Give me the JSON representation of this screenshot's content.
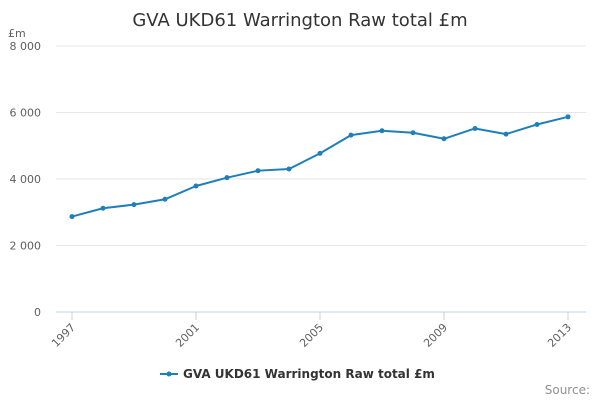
{
  "chart_data": {
    "type": "line",
    "title": "GVA UKD61 Warrington Raw total £m",
    "y_unit": "£m",
    "ylim": [
      0,
      8000
    ],
    "y_ticks": [
      0,
      2000,
      4000,
      6000,
      8000
    ],
    "y_tick_labels": [
      "0",
      "2 000",
      "4 000",
      "6 000",
      "8 000"
    ],
    "x": [
      1997,
      1998,
      1999,
      2000,
      2001,
      2002,
      2003,
      2004,
      2005,
      2006,
      2007,
      2008,
      2009,
      2010,
      2011,
      2012,
      2013
    ],
    "x_tick_labels": [
      "1997",
      "2001",
      "2005",
      "2009",
      "2013"
    ],
    "x_tick_values": [
      1997,
      2001,
      2005,
      2009,
      2013
    ],
    "series": [
      {
        "name": "GVA UKD61 Warrington Raw total £m",
        "color": "#1f7fb8",
        "values": [
          2870,
          3120,
          3230,
          3390,
          3790,
          4040,
          4250,
          4300,
          4770,
          5320,
          5450,
          5390,
          5210,
          5520,
          5350,
          5640,
          5870
        ]
      }
    ],
    "grid": true,
    "legend": "bottom-center",
    "source_label": "Source:"
  }
}
